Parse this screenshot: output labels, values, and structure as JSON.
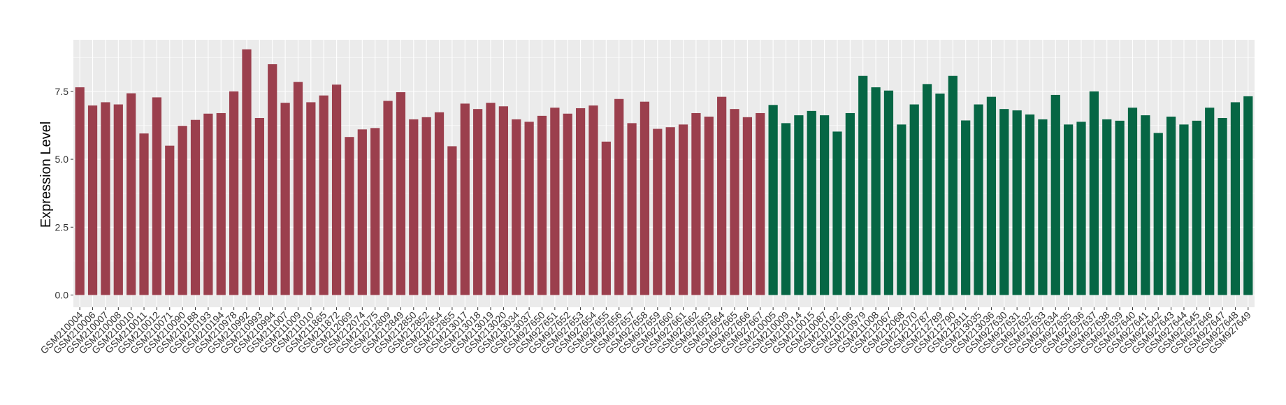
{
  "chart_data": {
    "type": "bar",
    "ylabel": "Expression Level",
    "xlabel": "",
    "ylim": [
      -0.45,
      9.4
    ],
    "yticks": [
      0.0,
      2.5,
      5.0,
      7.5
    ],
    "ytick_labels": [
      "0.0",
      "2.5",
      "5.0",
      "7.5"
    ],
    "grid": true,
    "background": "#ebebeb",
    "grid_color": "#ffffff",
    "group_colors": [
      "#9b3f4d",
      "#066644"
    ],
    "categories": [
      "GSM210004",
      "GSM210006",
      "GSM210007",
      "GSM210008",
      "GSM210010",
      "GSM210011",
      "GSM210012",
      "GSM210071",
      "GSM210090",
      "GSM210188",
      "GSM210193",
      "GSM210194",
      "GSM210978",
      "GSM210992",
      "GSM210993",
      "GSM210994",
      "GSM211007",
      "GSM211009",
      "GSM211010",
      "GSM211865",
      "GSM211872",
      "GSM212069",
      "GSM212074",
      "GSM212075",
      "GSM212809",
      "GSM212849",
      "GSM212850",
      "GSM212852",
      "GSM212854",
      "GSM212855",
      "GSM213017",
      "GSM213018",
      "GSM213019",
      "GSM213020",
      "GSM213034",
      "GSM213037",
      "GSM927650",
      "GSM927651",
      "GSM927652",
      "GSM927653",
      "GSM927654",
      "GSM927655",
      "GSM927656",
      "GSM927657",
      "GSM927658",
      "GSM927659",
      "GSM927660",
      "GSM927661",
      "GSM927662",
      "GSM927663",
      "GSM927664",
      "GSM927665",
      "GSM927666",
      "GSM927667",
      "GSM210005",
      "GSM210009",
      "GSM210014",
      "GSM210015",
      "GSM210087",
      "GSM210192",
      "GSM210196",
      "GSM210979",
      "GSM211008",
      "GSM212067",
      "GSM212068",
      "GSM212070",
      "GSM212787",
      "GSM212789",
      "GSM212790",
      "GSM212811",
      "GSM213035",
      "GSM213036",
      "GSM927630",
      "GSM927631",
      "GSM927632",
      "GSM927633",
      "GSM927634",
      "GSM927635",
      "GSM927636",
      "GSM927637",
      "GSM927638",
      "GSM927639",
      "GSM927640",
      "GSM927641",
      "GSM927642",
      "GSM927643",
      "GSM927644",
      "GSM927645",
      "GSM927646",
      "GSM927647",
      "GSM927648",
      "GSM927649"
    ],
    "values": [
      7.65,
      6.98,
      7.1,
      7.02,
      7.43,
      5.95,
      7.28,
      5.5,
      6.23,
      6.45,
      6.68,
      6.7,
      7.5,
      9.05,
      6.52,
      8.5,
      7.08,
      7.85,
      7.1,
      7.35,
      7.75,
      5.82,
      6.1,
      6.15,
      7.15,
      7.47,
      6.47,
      6.55,
      6.73,
      5.48,
      7.05,
      6.85,
      7.08,
      6.95,
      6.47,
      6.38,
      6.6,
      6.9,
      6.68,
      6.88,
      6.98,
      5.65,
      7.22,
      6.33,
      7.12,
      6.12,
      6.18,
      6.28,
      6.7,
      6.57,
      7.3,
      6.85,
      6.55,
      6.7,
      7.0,
      6.33,
      6.62,
      6.78,
      6.62,
      6.02,
      6.7,
      8.07,
      7.65,
      7.53,
      6.28,
      7.02,
      7.77,
      7.42,
      8.07,
      6.43,
      7.02,
      7.3,
      6.85,
      6.8,
      6.65,
      6.47,
      7.37,
      6.28,
      6.38,
      7.5,
      6.47,
      6.42,
      6.9,
      6.62,
      5.97,
      6.57,
      6.28,
      6.42,
      6.9,
      6.52,
      7.1,
      7.32
    ],
    "groups": [
      0,
      0,
      0,
      0,
      0,
      0,
      0,
      0,
      0,
      0,
      0,
      0,
      0,
      0,
      0,
      0,
      0,
      0,
      0,
      0,
      0,
      0,
      0,
      0,
      0,
      0,
      0,
      0,
      0,
      0,
      0,
      0,
      0,
      0,
      0,
      0,
      0,
      0,
      0,
      0,
      0,
      0,
      0,
      0,
      0,
      0,
      0,
      0,
      0,
      0,
      0,
      0,
      0,
      0,
      1,
      1,
      1,
      1,
      1,
      1,
      1,
      1,
      1,
      1,
      1,
      1,
      1,
      1,
      1,
      1,
      1,
      1,
      1,
      1,
      1,
      1,
      1,
      1,
      1,
      1,
      1,
      1,
      1,
      1,
      1,
      1,
      1,
      1,
      1,
      1,
      1,
      1
    ]
  }
}
